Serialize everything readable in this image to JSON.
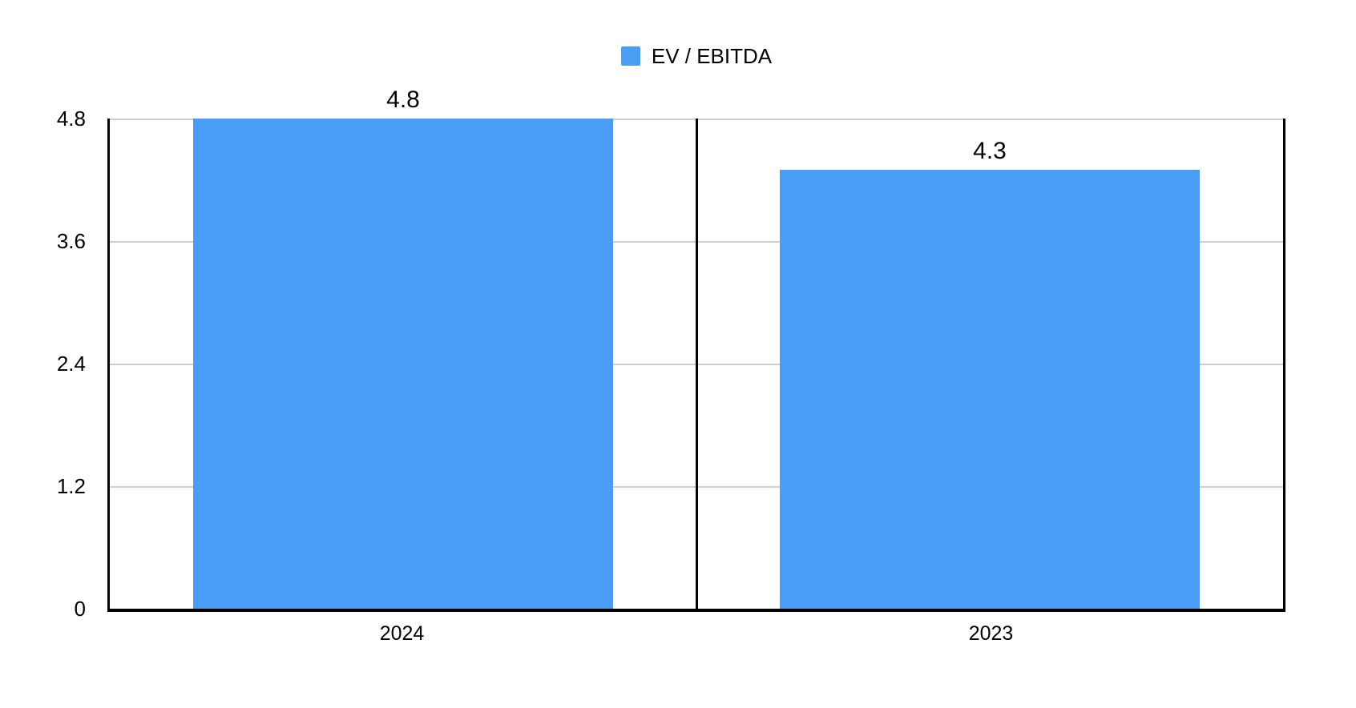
{
  "legend": {
    "label": "EV / EBITDA"
  },
  "colors": {
    "series": "#4A9DF4",
    "grid": "#cfcfcf",
    "axis": "#000000",
    "background": "#ffffff",
    "text": "#000000"
  },
  "chart_data": {
    "type": "bar",
    "title": "",
    "xlabel": "",
    "ylabel": "",
    "categories": [
      "2024",
      "2023"
    ],
    "series": [
      {
        "name": "EV / EBITDA",
        "color": "#4A9DF4",
        "values": [
          4.8,
          4.3
        ]
      }
    ],
    "value_labels": [
      "4.8",
      "4.3"
    ],
    "ylim": [
      0,
      4.8
    ],
    "yticks": [
      0,
      1.2,
      2.4,
      3.6,
      4.8
    ],
    "ytick_labels": [
      "0",
      "1.2",
      "2.4",
      "3.6",
      "4.8"
    ],
    "grid": true,
    "legend_position": "top"
  }
}
